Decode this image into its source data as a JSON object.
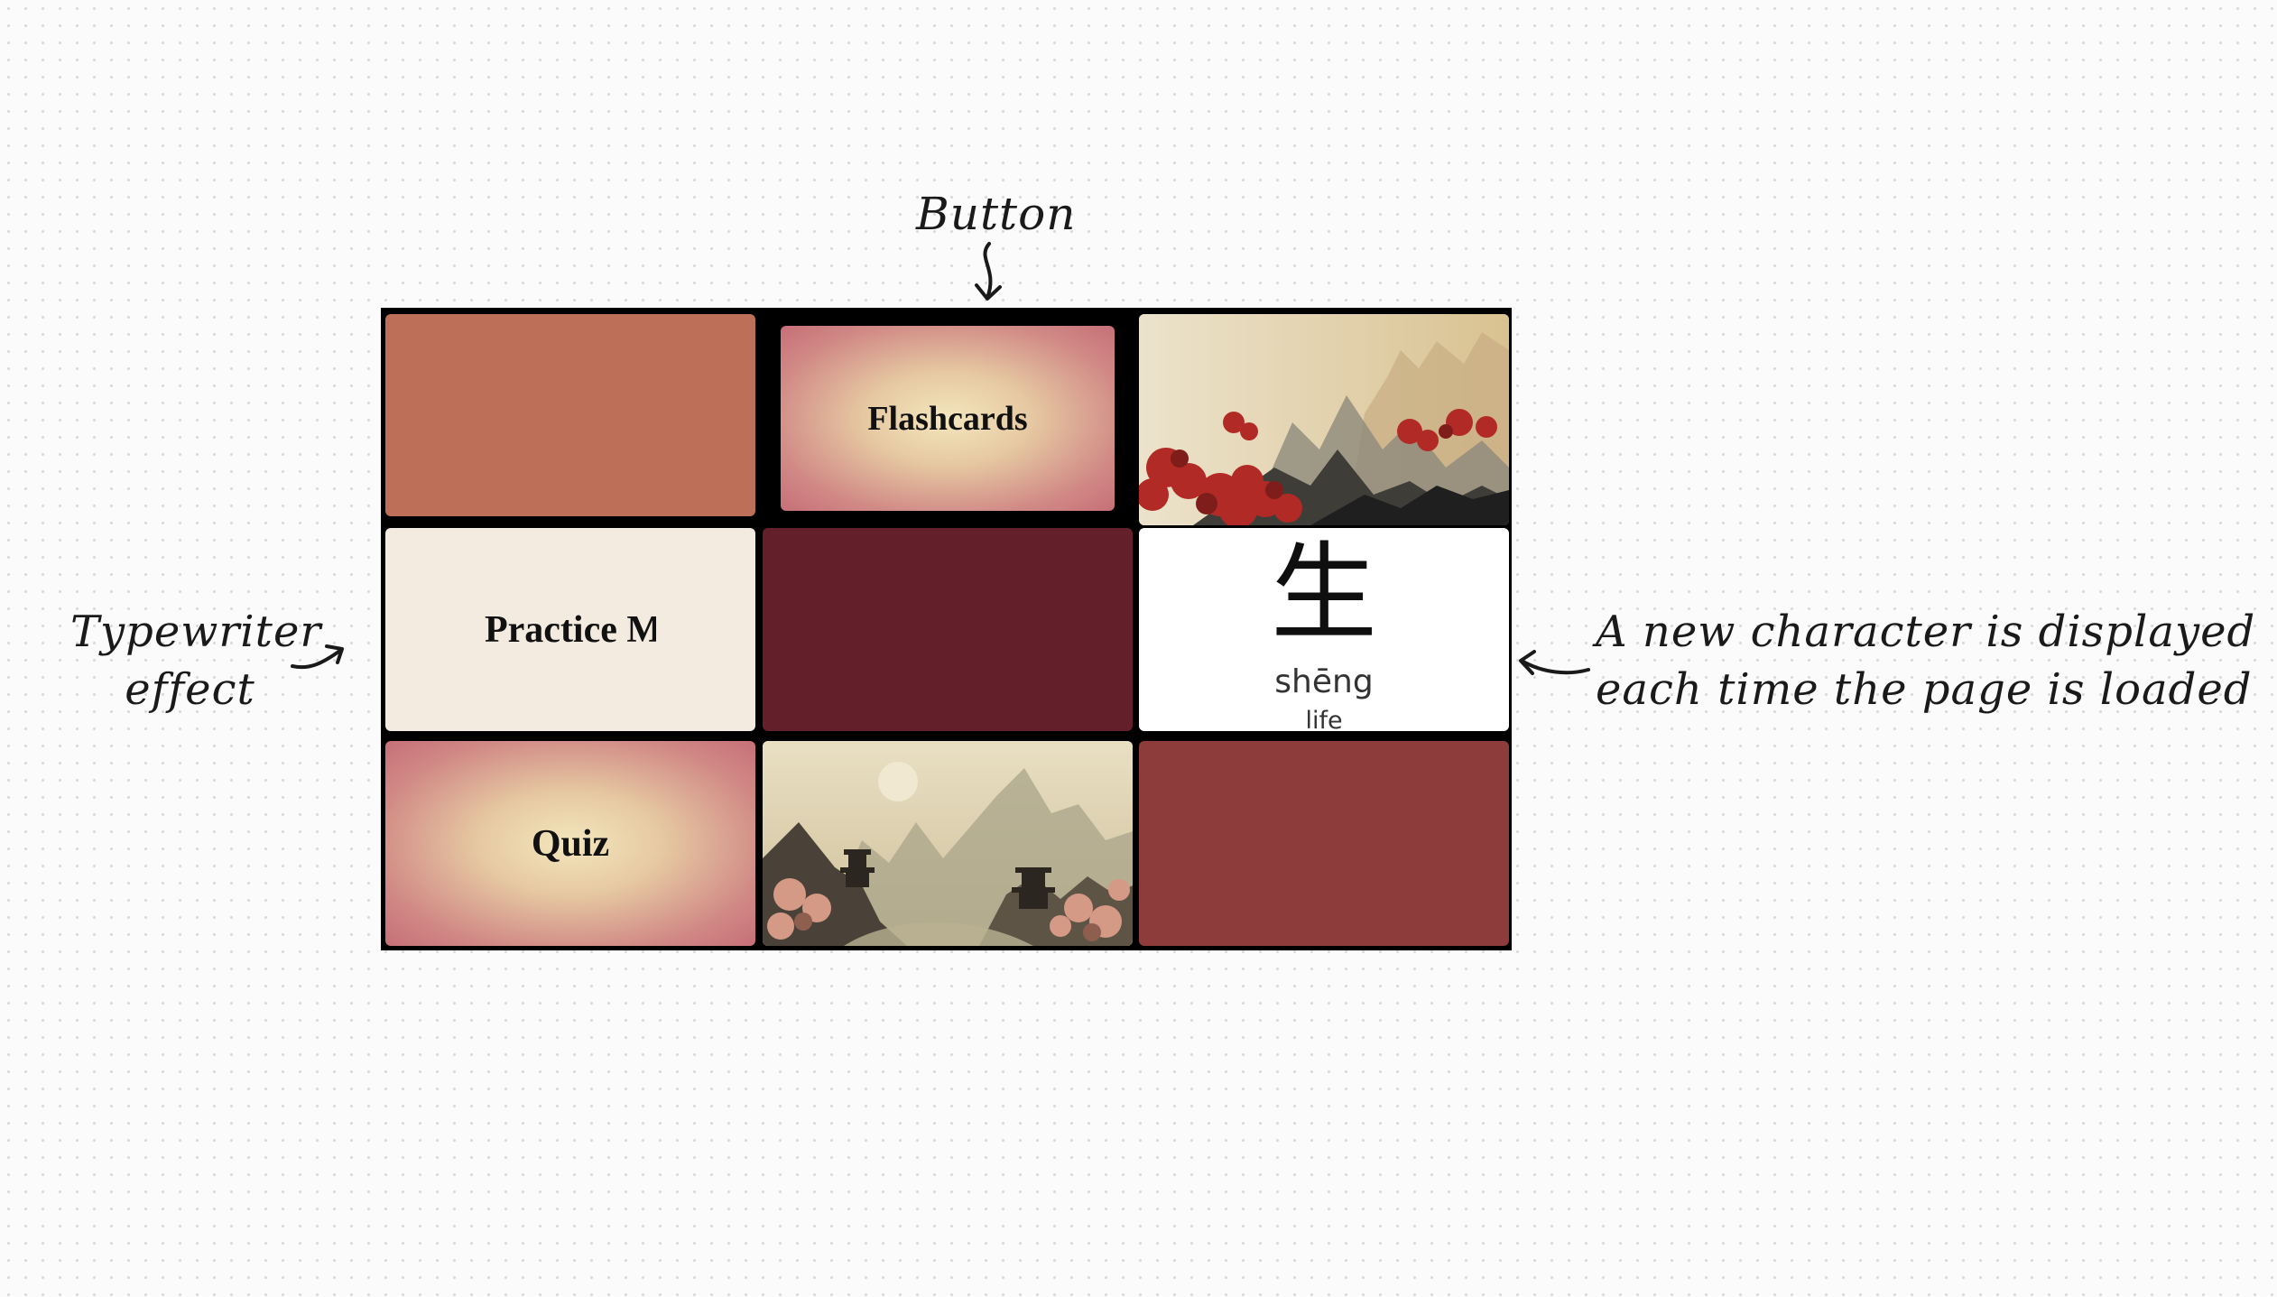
{
  "annotations": {
    "button": "Button",
    "typewriter_line1": "Typewriter",
    "typewriter_line2": "effect",
    "character_line1": "A new character is displayed",
    "character_line2": "each time the page is loaded"
  },
  "tiles": {
    "flashcards_label": "Flashcards",
    "practice_label": "Practice M",
    "quiz_label": "Quiz",
    "character": {
      "hanzi": "生",
      "pinyin": "shēng",
      "meaning": "life"
    }
  },
  "colors": {
    "rust": "#bd6f57",
    "maroon": "#63202a",
    "red": "#8e3b3b",
    "cream": "#f3ebe0",
    "border": "#000000"
  },
  "images": {
    "top_right": "red-trees-mountain-painting",
    "bottom_middle": "pagoda-river-landscape-painting"
  }
}
